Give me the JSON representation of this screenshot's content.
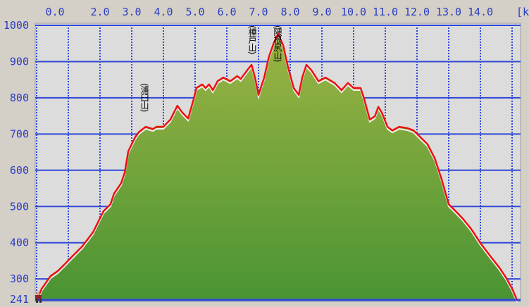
{
  "chart_data": {
    "type": "area",
    "title": "",
    "xlabel": "[km]",
    "ylabel": "",
    "xlim": [
      0,
      15.16
    ],
    "ylim": [
      241,
      1000
    ],
    "x_tick_labels": [
      "0.0",
      "2.0",
      "3.0",
      "4.0",
      "5.0",
      "6.0",
      "7.0",
      "8.0",
      "9.0",
      "10.0",
      "11.0",
      "12.0",
      "13.0",
      "14.0"
    ],
    "x_gridlines_km": [
      0,
      1,
      2,
      3,
      4,
      5,
      6,
      7,
      8,
      9,
      10,
      11,
      12,
      13,
      14,
      15
    ],
    "y_tick_labels": [
      "1000",
      "900",
      "800",
      "700",
      "600",
      "500",
      "400",
      "300",
      "241"
    ],
    "y_gridlines": [
      1000,
      900,
      800,
      700,
      600,
      500,
      400,
      300
    ],
    "grid": true,
    "colors": {
      "line": "#ee1010",
      "fill_top": "#9cb444",
      "fill_bottom": "#4a9433",
      "grid": "#3048d8",
      "plot_bg": "#dcdcdc",
      "labels": "#2c3cc0"
    },
    "series": [
      {
        "x": [
          0,
          0.16,
          0.44,
          0.67,
          0.89,
          1.11,
          1.44,
          1.78,
          2.11,
          2.33,
          2.44,
          2.67,
          2.78,
          2.89,
          3.0,
          3.11,
          3.22,
          3.44,
          3.67,
          3.78,
          4.0,
          4.22,
          4.44,
          4.6,
          4.78,
          4.96,
          5.04,
          5.22,
          5.33,
          5.44,
          5.56,
          5.71,
          5.89,
          6.11,
          6.33,
          6.44,
          6.67,
          6.78,
          6.89,
          7.0,
          7.18,
          7.33,
          7.49,
          7.62,
          7.78,
          7.93,
          8.11,
          8.27,
          8.38,
          8.51,
          8.67,
          8.89,
          9.11,
          9.4,
          9.62,
          9.82,
          10.0,
          10.22,
          10.33,
          10.51,
          10.67,
          10.78,
          10.89,
          11.07,
          11.22,
          11.44,
          11.71,
          11.89,
          12.11,
          12.33,
          12.56,
          12.78,
          13.0,
          13.22,
          13.44,
          13.71,
          14.0,
          14.33,
          14.6,
          14.82,
          15.0,
          15.16
        ],
        "y": [
          241,
          273,
          308,
          322,
          341,
          361,
          390,
          429,
          487,
          506,
          535,
          565,
          594,
          652,
          672,
          691,
          705,
          720,
          714,
          720,
          720,
          740,
          778,
          759,
          743,
          798,
          827,
          837,
          827,
          837,
          821,
          846,
          856,
          846,
          860,
          852,
          879,
          891,
          856,
          808,
          856,
          914,
          953,
          977,
          944,
          885,
          827,
          808,
          856,
          891,
          876,
          846,
          856,
          841,
          821,
          841,
          827,
          827,
          798,
          740,
          749,
          775,
          759,
          720,
          710,
          720,
          716,
          710,
          691,
          672,
          633,
          574,
          506,
          487,
          467,
          438,
          399,
          361,
          331,
          302,
          273,
          241
        ]
      }
    ],
    "annotations": [
      {
        "km": 3.4,
        "label": "(浦臼山)"
      },
      {
        "km": 6.8,
        "label": "(樺戸山)"
      },
      {
        "km": 7.6,
        "label": "(隈根尻山)"
      }
    ],
    "start_marker_icon": "hiker-icon"
  }
}
